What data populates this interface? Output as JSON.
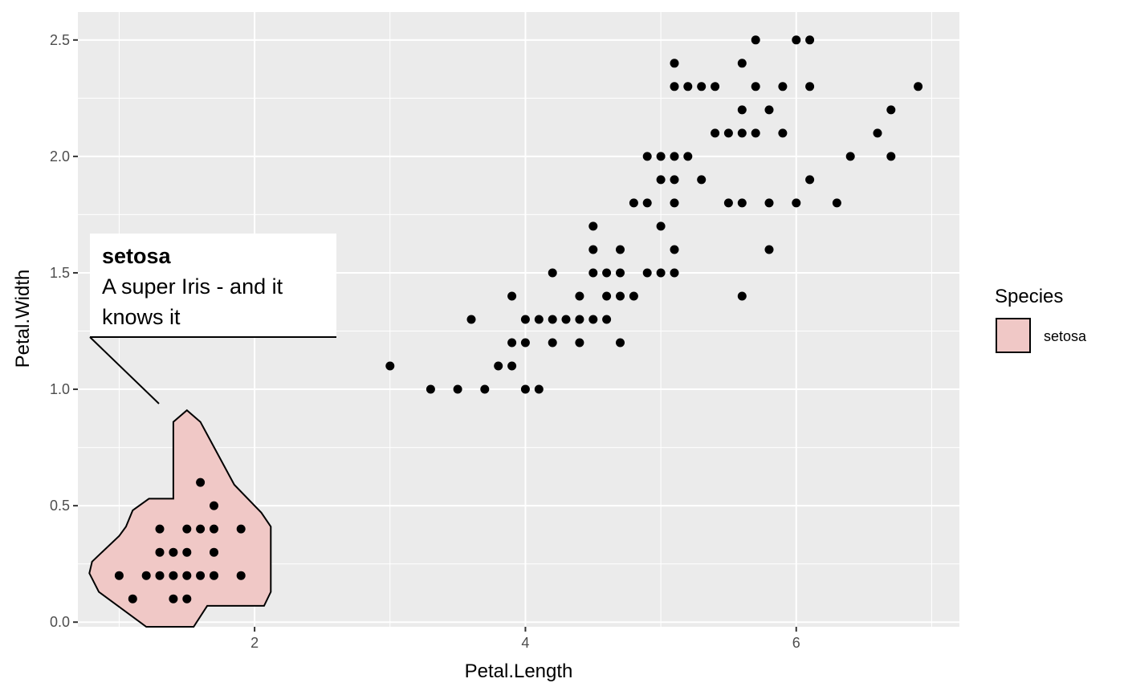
{
  "chart_data": {
    "type": "scatter",
    "xlabel": "Petal.Length",
    "ylabel": "Petal.Width",
    "xlim": [
      0.695,
      7.205
    ],
    "ylim": [
      -0.02,
      2.62
    ],
    "x_ticks": [
      2,
      4,
      6
    ],
    "x_tick_labels": [
      "2",
      "4",
      "6"
    ],
    "y_ticks": [
      0.0,
      0.5,
      1.0,
      1.5,
      2.0,
      2.5
    ],
    "y_tick_labels": [
      "0.0",
      "0.5",
      "1.0",
      "1.5",
      "2.0",
      "2.5"
    ],
    "grid": true,
    "legend": {
      "title": "Species",
      "position": "right",
      "entries": [
        {
          "label": "setosa",
          "fill": "#f0c8c6",
          "stroke": "#000000"
        }
      ]
    },
    "annotation": {
      "title": "setosa",
      "lines": [
        "A super Iris - and it",
        "knows it"
      ]
    },
    "points": [
      [
        1.0,
        0.2
      ],
      [
        1.1,
        0.1
      ],
      [
        1.2,
        0.2
      ],
      [
        1.3,
        0.2
      ],
      [
        1.3,
        0.3
      ],
      [
        1.3,
        0.4
      ],
      [
        1.4,
        0.1
      ],
      [
        1.4,
        0.2
      ],
      [
        1.4,
        0.3
      ],
      [
        1.5,
        0.1
      ],
      [
        1.5,
        0.2
      ],
      [
        1.5,
        0.3
      ],
      [
        1.5,
        0.4
      ],
      [
        1.6,
        0.2
      ],
      [
        1.6,
        0.4
      ],
      [
        1.6,
        0.6
      ],
      [
        1.7,
        0.2
      ],
      [
        1.7,
        0.3
      ],
      [
        1.7,
        0.4
      ],
      [
        1.7,
        0.5
      ],
      [
        1.9,
        0.2
      ],
      [
        1.9,
        0.4
      ],
      [
        3.0,
        1.1
      ],
      [
        3.3,
        1.0
      ],
      [
        3.5,
        1.0
      ],
      [
        3.6,
        1.3
      ],
      [
        3.7,
        1.0
      ],
      [
        3.8,
        1.1
      ],
      [
        3.9,
        1.1
      ],
      [
        3.9,
        1.2
      ],
      [
        3.9,
        1.4
      ],
      [
        4.0,
        1.0
      ],
      [
        4.0,
        1.2
      ],
      [
        4.0,
        1.3
      ],
      [
        4.1,
        1.0
      ],
      [
        4.1,
        1.3
      ],
      [
        4.2,
        1.2
      ],
      [
        4.2,
        1.3
      ],
      [
        4.2,
        1.5
      ],
      [
        4.3,
        1.3
      ],
      [
        4.4,
        1.2
      ],
      [
        4.4,
        1.3
      ],
      [
        4.4,
        1.4
      ],
      [
        4.5,
        1.3
      ],
      [
        4.5,
        1.5
      ],
      [
        4.5,
        1.6
      ],
      [
        4.5,
        1.7
      ],
      [
        4.6,
        1.3
      ],
      [
        4.6,
        1.4
      ],
      [
        4.6,
        1.5
      ],
      [
        4.7,
        1.2
      ],
      [
        4.7,
        1.4
      ],
      [
        4.7,
        1.5
      ],
      [
        4.7,
        1.6
      ],
      [
        4.8,
        1.4
      ],
      [
        4.8,
        1.8
      ],
      [
        4.9,
        1.5
      ],
      [
        4.9,
        1.8
      ],
      [
        4.9,
        2.0
      ],
      [
        5.0,
        1.5
      ],
      [
        5.0,
        1.7
      ],
      [
        5.0,
        1.9
      ],
      [
        5.0,
        2.0
      ],
      [
        5.1,
        1.5
      ],
      [
        5.1,
        1.6
      ],
      [
        5.1,
        1.8
      ],
      [
        5.1,
        1.9
      ],
      [
        5.1,
        2.0
      ],
      [
        5.1,
        2.3
      ],
      [
        5.1,
        2.4
      ],
      [
        5.2,
        2.0
      ],
      [
        5.2,
        2.3
      ],
      [
        5.3,
        1.9
      ],
      [
        5.3,
        2.3
      ],
      [
        5.4,
        2.1
      ],
      [
        5.4,
        2.3
      ],
      [
        5.5,
        1.8
      ],
      [
        5.5,
        2.1
      ],
      [
        5.6,
        1.4
      ],
      [
        5.6,
        1.8
      ],
      [
        5.6,
        2.1
      ],
      [
        5.6,
        2.2
      ],
      [
        5.6,
        2.4
      ],
      [
        5.7,
        2.1
      ],
      [
        5.7,
        2.3
      ],
      [
        5.7,
        2.5
      ],
      [
        5.8,
        1.6
      ],
      [
        5.8,
        1.8
      ],
      [
        5.8,
        2.2
      ],
      [
        5.9,
        2.1
      ],
      [
        5.9,
        2.3
      ],
      [
        6.0,
        1.8
      ],
      [
        6.0,
        2.5
      ],
      [
        6.1,
        1.9
      ],
      [
        6.1,
        2.3
      ],
      [
        6.1,
        2.5
      ],
      [
        6.3,
        1.8
      ],
      [
        6.4,
        2.0
      ],
      [
        6.6,
        2.1
      ],
      [
        6.7,
        2.0
      ],
      [
        6.7,
        2.2
      ],
      [
        6.9,
        2.3
      ]
    ]
  }
}
